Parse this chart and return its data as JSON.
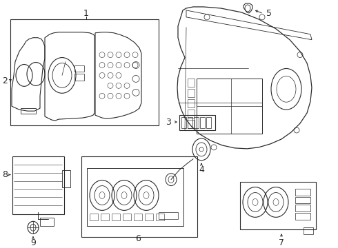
{
  "bg_color": "#ffffff",
  "line_color": "#2a2a2a",
  "lw": 0.7,
  "fig_width": 4.9,
  "fig_height": 3.6,
  "dpi": 100
}
